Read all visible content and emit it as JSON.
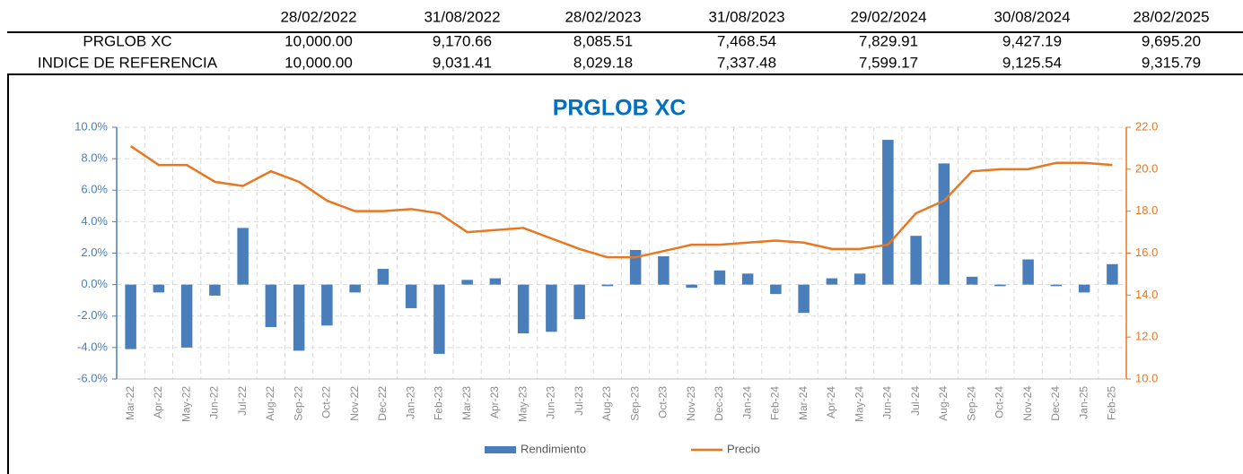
{
  "table": {
    "columns": [
      "28/02/2022",
      "31/08/2022",
      "28/02/2023",
      "31/08/2023",
      "29/02/2024",
      "30/08/2024",
      "28/02/2025"
    ],
    "rows": [
      {
        "label": "PRGLOB XC",
        "values": [
          "10,000.00",
          "9,170.66",
          "8,085.51",
          "7,468.54",
          "7,829.91",
          "9,427.19",
          "9,695.20"
        ]
      },
      {
        "label": "INDICE DE REFERENCIA",
        "values": [
          "10,000.00",
          "9,031.41",
          "8,029.18",
          "7,337.48",
          "7,599.17",
          "9,125.54",
          "9,315.79"
        ]
      }
    ]
  },
  "chart_data": {
    "type": "bar-line",
    "title": "PRGLOB XC",
    "categories": [
      "Mar-22",
      "Apr-22",
      "May-22",
      "Jun-22",
      "Jul-22",
      "Aug-22",
      "Sep-22",
      "Oct-22",
      "Nov-22",
      "Dec-22",
      "Jan-23",
      "Feb-23",
      "Mar-23",
      "Apr-23",
      "May-23",
      "Jun-23",
      "Jul-23",
      "Aug-23",
      "Sep-23",
      "Oct-23",
      "Nov-23",
      "Dec-23",
      "Jan-24",
      "Feb-24",
      "Mar-24",
      "Apr-24",
      "May-24",
      "Jun-24",
      "Jul-24",
      "Aug-24",
      "Sep-24",
      "Oct-24",
      "Nov-24",
      "Dec-24",
      "Jan-25",
      "Feb-25"
    ],
    "series": [
      {
        "name": "Rendimiento",
        "type": "bar",
        "color": "#4a7ebb",
        "axis": "y",
        "values": [
          -4.1,
          -0.5,
          -4.0,
          -0.7,
          3.6,
          -2.7,
          -4.2,
          -2.6,
          -0.5,
          1.0,
          -1.5,
          -4.4,
          0.3,
          0.4,
          -3.1,
          -3.0,
          -2.2,
          -0.1,
          2.2,
          1.8,
          -0.2,
          0.9,
          0.7,
          -0.6,
          -1.8,
          0.4,
          0.7,
          9.2,
          3.1,
          7.7,
          0.5,
          -0.1,
          1.6,
          -0.1,
          -0.5,
          1.3
        ]
      },
      {
        "name": "Precio",
        "type": "line",
        "color": "#e87722",
        "axis": "y2",
        "values": [
          21.1,
          20.2,
          20.2,
          19.4,
          19.2,
          19.9,
          19.4,
          18.5,
          18.0,
          18.0,
          18.1,
          17.9,
          17.0,
          17.1,
          17.2,
          16.7,
          16.2,
          15.8,
          15.8,
          16.1,
          16.4,
          16.4,
          16.5,
          16.6,
          16.5,
          16.2,
          16.2,
          16.4,
          17.9,
          18.5,
          19.9,
          20.0,
          20.0,
          20.3,
          20.3,
          20.2
        ]
      }
    ],
    "ylim": [
      -6,
      10
    ],
    "yticks": [
      {
        "value": -6,
        "label": "-6.0%"
      },
      {
        "value": -4,
        "label": "-4.0%"
      },
      {
        "value": -2,
        "label": "-2.0%"
      },
      {
        "value": 0,
        "label": "0.0%"
      },
      {
        "value": 2,
        "label": "2.0%"
      },
      {
        "value": 4,
        "label": "4.0%"
      },
      {
        "value": 6,
        "label": "6.0%"
      },
      {
        "value": 8,
        "label": "8.0%"
      },
      {
        "value": 10,
        "label": "10.0%"
      }
    ],
    "y2lim": [
      10,
      22
    ],
    "y2ticks": [
      {
        "value": 10,
        "label": "10.0"
      },
      {
        "value": 12,
        "label": "12.0"
      },
      {
        "value": 14,
        "label": "14.0"
      },
      {
        "value": 16,
        "label": "16.0"
      },
      {
        "value": 18,
        "label": "18.0"
      },
      {
        "value": 20,
        "label": "20.0"
      },
      {
        "value": 22,
        "label": "22.0"
      }
    ],
    "grid": true,
    "legend": "bottom"
  }
}
